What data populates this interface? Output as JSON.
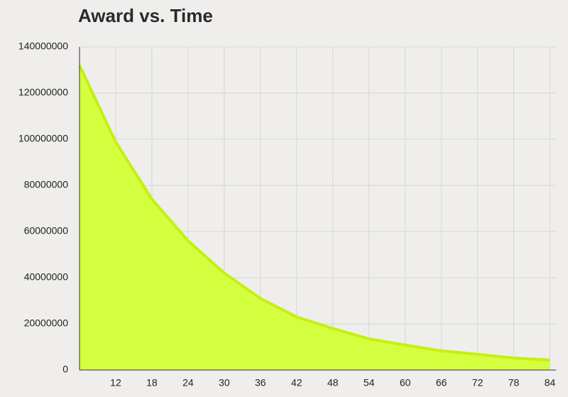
{
  "chart_data": {
    "type": "area",
    "title": "Award vs. Time",
    "x": [
      6,
      12,
      18,
      24,
      30,
      36,
      42,
      48,
      54,
      60,
      66,
      72,
      78,
      84
    ],
    "series": [
      {
        "color": "#d4ff3f",
        "values": [
          132000000,
          98800000,
          74000000,
          56000000,
          42000000,
          31000000,
          23000000,
          18000000,
          13500000,
          10800000,
          8300000,
          6800000,
          5200000,
          4300000
        ]
      }
    ],
    "xlim": [
      6,
      85
    ],
    "xticks": [
      12,
      18,
      24,
      30,
      36,
      42,
      48,
      54,
      60,
      66,
      72,
      78,
      84
    ],
    "ylim": [
      0,
      140000000
    ],
    "yticks": [
      0,
      20000000,
      40000000,
      60000000,
      80000000,
      100000000,
      120000000,
      140000000
    ],
    "grid": true
  }
}
